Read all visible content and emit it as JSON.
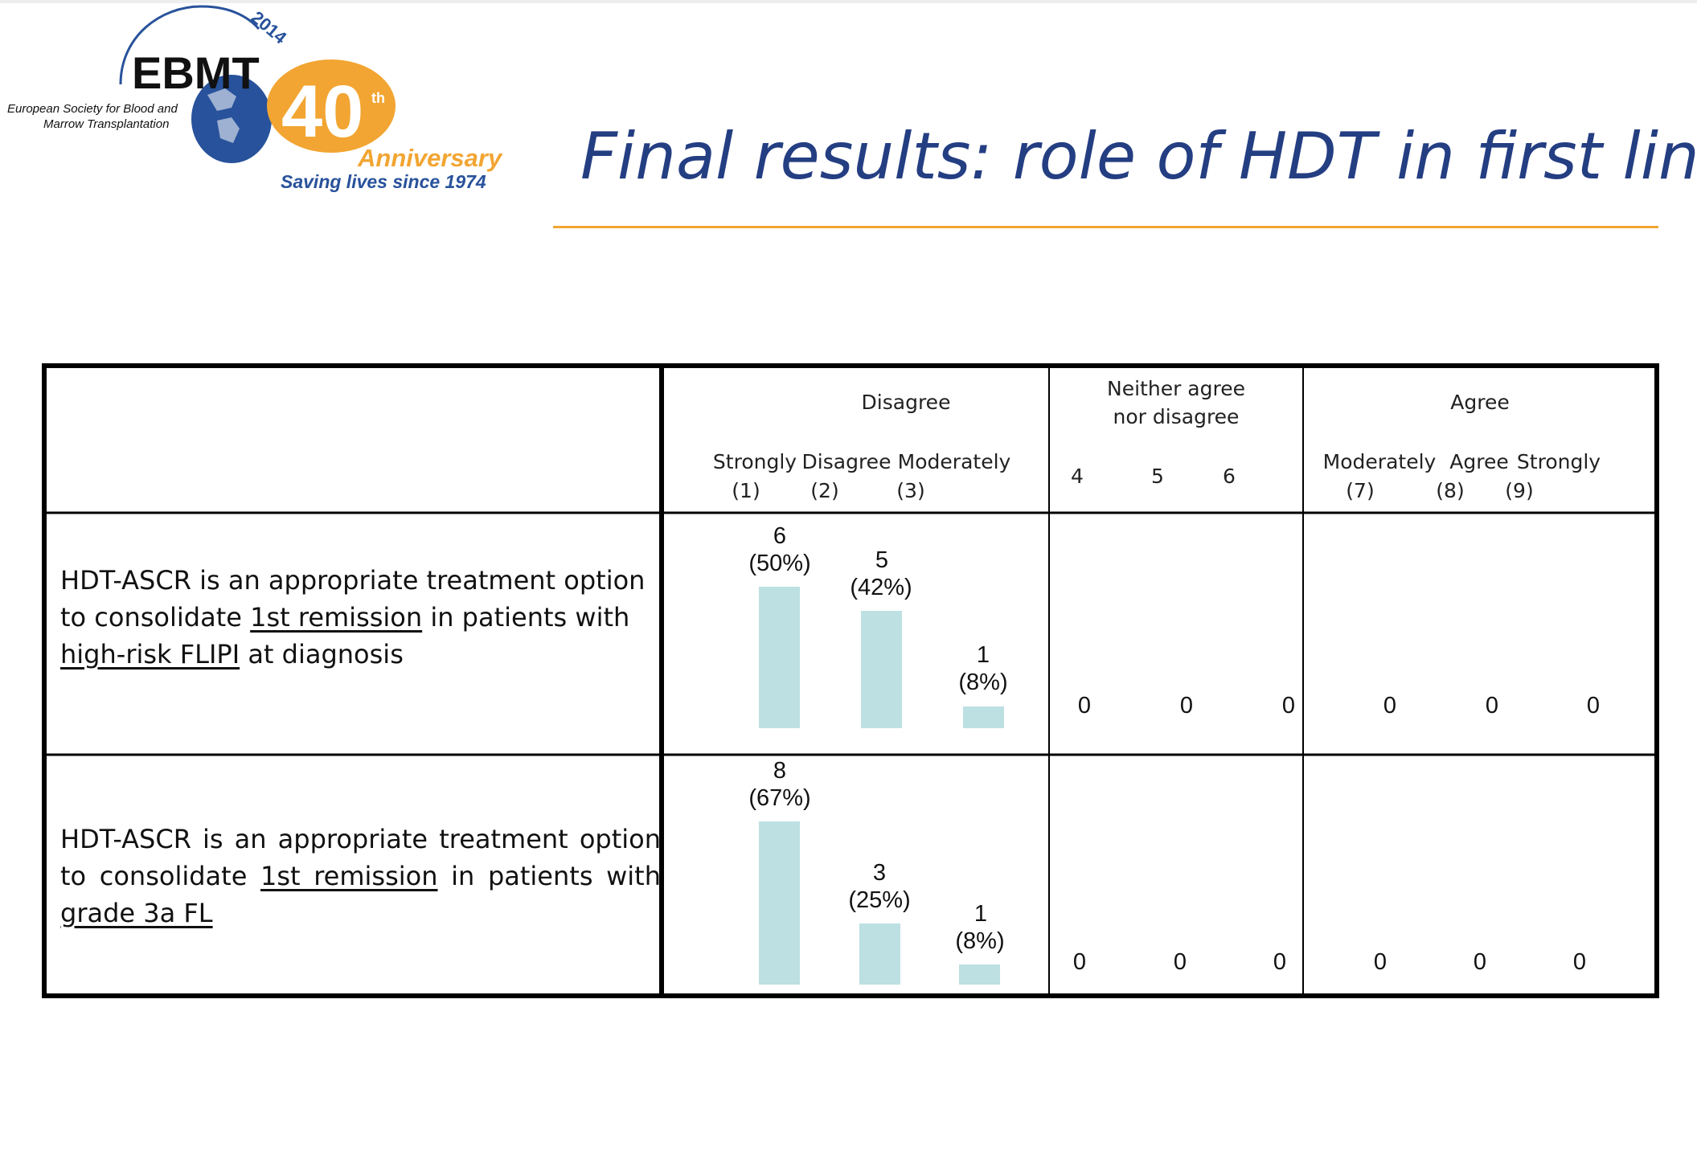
{
  "logo": {
    "brand": "EBMT",
    "year": "2014",
    "anniversary_number": "40",
    "anniversary_suffix": "th",
    "anniversary_word": "Anniversary",
    "society_line1": "European Society for Blood and",
    "society_line2": "Marrow Transplantation",
    "tagline": "Saving lives since 1974"
  },
  "title": "Final results: role of HDT in first line",
  "colors": {
    "title": "#243e82",
    "rule": "#f2a532",
    "bar": "#bde0e3",
    "logo_blue": "#28529b",
    "logo_orange": "#f2a532"
  },
  "header": {
    "disagree_group": "Disagree",
    "neither_group_line1": "Neither agree",
    "neither_group_line2": "nor disagree",
    "agree_group": "Agree",
    "disagree_cols": [
      {
        "name": "Strongly",
        "code": "(1)"
      },
      {
        "name": "Disagree",
        "code": "(2)"
      },
      {
        "name": "Moderately",
        "code": "(3)"
      }
    ],
    "neither_cols": [
      "4",
      "5",
      "6"
    ],
    "agree_cols": [
      {
        "name": "Moderately",
        "code": "(7)"
      },
      {
        "name": "Agree",
        "code": "(8)"
      },
      {
        "name": "Strongly",
        "code": "(9)"
      }
    ]
  },
  "rows": [
    {
      "statement": {
        "line1": "HDT-ASCR is an appropriate treatment option",
        "line2_pre": "to consolidate ",
        "line2_u": "1st remission",
        "line2_post": " in patients with",
        "line3_u": "high-risk FLIPI",
        "line3_post": " at diagnosis"
      },
      "counts": [
        {
          "n": "6",
          "pct": "(50%)",
          "share": 0.5
        },
        {
          "n": "5",
          "pct": "(42%)",
          "share": 0.42
        },
        {
          "n": "1",
          "pct": "(8%)",
          "share": 0.08
        }
      ],
      "zeros": [
        "0",
        "0",
        "0",
        "0",
        "0",
        "0"
      ]
    },
    {
      "statement": {
        "line1": "HDT-ASCR is an appropriate treatment option",
        "line2_pre": "to consolidate ",
        "line2_u": "1st remission",
        "line2_post": " in patients with",
        "line3_u": "grade 3a FL",
        "line3_post": ""
      },
      "counts": [
        {
          "n": "8",
          "pct": "(67%)",
          "share": 0.67
        },
        {
          "n": "3",
          "pct": "(25%)",
          "share": 0.25
        },
        {
          "n": "1",
          "pct": "(8%)",
          "share": 0.08
        }
      ],
      "zeros": [
        "0",
        "0",
        "0",
        "0",
        "0",
        "0"
      ]
    }
  ]
}
